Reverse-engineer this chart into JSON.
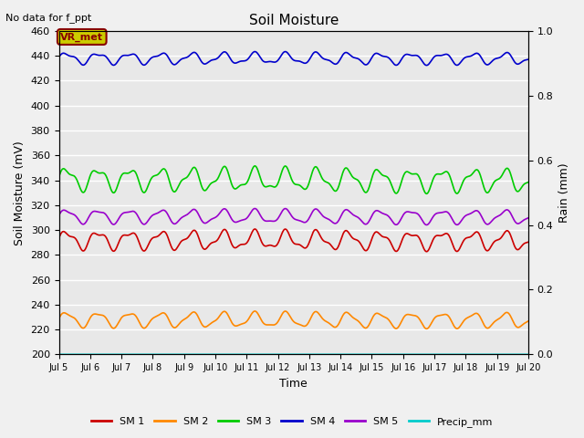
{
  "title": "Soil Moisture",
  "top_left_text": "No data for f_ppt",
  "ylabel_left": "Soil Moisture (mV)",
  "ylabel_right": "Rain (mm)",
  "xlabel": "Time",
  "ylim_left": [
    200,
    460
  ],
  "ylim_right": [
    0.0,
    1.0
  ],
  "x_start_days": 5,
  "x_end_days": 20,
  "n_points": 1500,
  "series": {
    "SM1": {
      "color": "#cc0000",
      "base": 292,
      "amp": 6.5,
      "freq": 1.0,
      "amp2": 2.5,
      "freq2": 2.1,
      "trend": -0.5,
      "label": "SM 1"
    },
    "SM2": {
      "color": "#ff8800",
      "base": 228,
      "amp": 5.5,
      "freq": 1.0,
      "amp2": 1.5,
      "freq2": 2.1,
      "trend": -0.55,
      "label": "SM 2"
    },
    "SM3": {
      "color": "#00cc00",
      "base": 341,
      "amp": 8.0,
      "freq": 1.0,
      "amp2": 3.0,
      "freq2": 2.1,
      "trend": -1.1,
      "label": "SM 3"
    },
    "SM4": {
      "color": "#0000cc",
      "base": 438,
      "amp": 4.0,
      "freq": 1.0,
      "amp2": 1.5,
      "freq2": 2.1,
      "trend": -0.15,
      "label": "SM 4"
    },
    "SM5": {
      "color": "#9900cc",
      "base": 311,
      "amp": 5.0,
      "freq": 1.0,
      "amp2": 1.5,
      "freq2": 2.1,
      "trend": -0.55,
      "label": "SM 5"
    },
    "Precip_mm": {
      "color": "#00cccc",
      "base": 0.0,
      "amp": 0,
      "freq": 0,
      "amp2": 0,
      "freq2": 0,
      "trend": 0,
      "label": "Precip_mm"
    }
  },
  "xtick_days": [
    5,
    6,
    7,
    8,
    9,
    10,
    11,
    12,
    13,
    14,
    15,
    16,
    17,
    18,
    19,
    20
  ],
  "yticks_left": [
    200,
    220,
    240,
    260,
    280,
    300,
    320,
    340,
    360,
    380,
    400,
    420,
    440,
    460
  ],
  "yticks_right": [
    0.0,
    0.2,
    0.4,
    0.6,
    0.8,
    1.0
  ],
  "bg_color": "#e8e8e8",
  "fig_bg_color": "#f0f0f0",
  "vr_met_text": "VR_met",
  "vr_met_bg": "#cccc00",
  "vr_met_border": "#880000",
  "linewidth": 1.2
}
